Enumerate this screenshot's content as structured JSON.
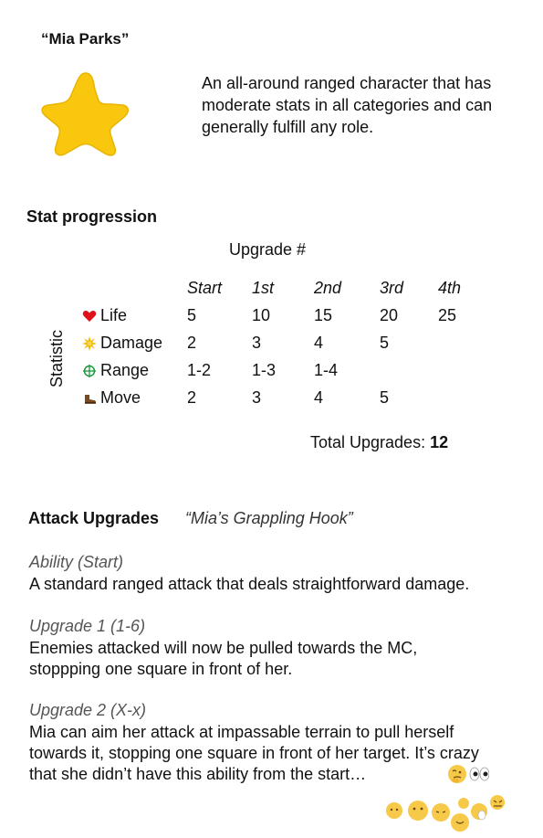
{
  "character": {
    "name": "“Mia Parks”",
    "icon": "star-icon",
    "accent_color": "#F9C80E",
    "description": "An all-around ranged character that has moderate stats in all categories and can generally fulfill any role."
  },
  "stats": {
    "title": "Stat progression",
    "upgrade_header": "Upgrade #",
    "axis_label": "Statistic",
    "columns": [
      "Start",
      "1st",
      "2nd",
      "3rd",
      "4th"
    ],
    "rows": [
      {
        "label": "Life",
        "icon": "heart-icon",
        "values": [
          "5",
          "10",
          "15",
          "20",
          "25"
        ]
      },
      {
        "label": "Damage",
        "icon": "burst-icon",
        "values": [
          "2",
          "3",
          "4",
          "5",
          ""
        ]
      },
      {
        "label": "Range",
        "icon": "crosshair-icon",
        "values": [
          "1-2",
          "1-3",
          "1-4",
          "",
          ""
        ]
      },
      {
        "label": "Move",
        "icon": "boot-icon",
        "values": [
          "2",
          "3",
          "4",
          "5",
          ""
        ]
      }
    ],
    "total_label": "Total Upgrades:",
    "total_value": "12"
  },
  "attack": {
    "title": "Attack Upgrades",
    "subtitle": "“Mia’s Grappling Hook”",
    "abilities": [
      {
        "label": "Ability (Start)",
        "text": "A standard ranged attack that deals straightforward damage."
      },
      {
        "label": "Upgrade 1 (1-6)",
        "text": "Enemies attacked will now be pulled towards the MC, stoppping one square in front of her."
      },
      {
        "label": "Upgrade 2 (X-x)",
        "text": "Mia can aim her attack at impassable terrain to pull herself towards it, stopping one square in front of her target.  It’s crazy that she didn’t have this ability from the start…"
      }
    ]
  },
  "decorations": [
    "thinking-face-icon",
    "eyes-icon",
    "emoji-faces-cluster"
  ]
}
